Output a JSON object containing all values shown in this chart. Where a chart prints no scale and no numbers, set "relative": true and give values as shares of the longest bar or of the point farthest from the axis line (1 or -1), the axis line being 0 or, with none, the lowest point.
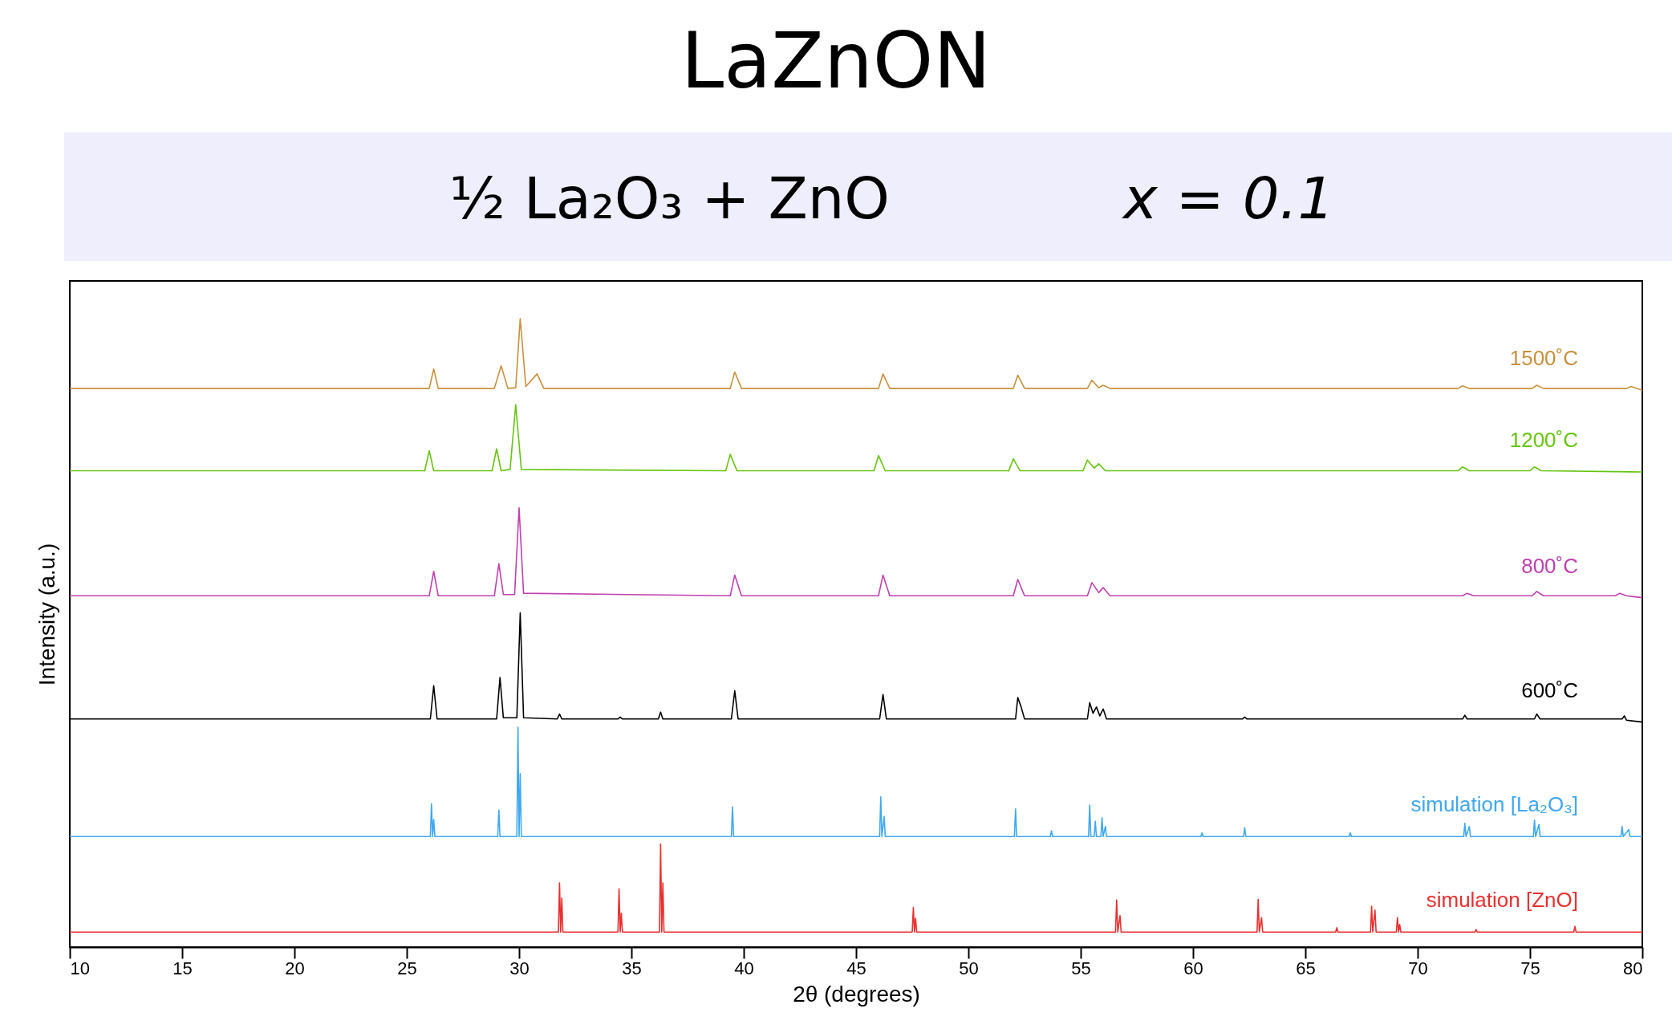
{
  "chart_data": {
    "type": "line",
    "title": "LaZnON",
    "subtitle": "½ La₂O₃ + ZnO",
    "annotations": [
      "x = 0.1"
    ],
    "xlabel": "2θ (degrees)",
    "ylabel": "Intensity (a.u.)",
    "relative": true,
    "xlim": [
      10,
      80
    ],
    "xticks": [
      10,
      15,
      20,
      25,
      30,
      35,
      40,
      45,
      50,
      55,
      60,
      65,
      70,
      75,
      80
    ],
    "grid": false,
    "legend": false,
    "series": [
      {
        "name": "1500˚C",
        "color": "#c8903c",
        "x": [
          10,
          26.0,
          26.2,
          26.4,
          28.9,
          29.2,
          29.5,
          29.85,
          30.05,
          30.3,
          30.8,
          31.1,
          39.4,
          39.6,
          39.9,
          46.0,
          46.2,
          46.5,
          52.0,
          52.2,
          52.5,
          55.3,
          55.5,
          55.8,
          56.0,
          56.3,
          71.8,
          72.0,
          72.3,
          75.1,
          75.3,
          75.6,
          79.3,
          79.5,
          80
        ],
        "values": [
          0.889,
          0.889,
          0.92,
          0.889,
          0.889,
          0.925,
          0.889,
          0.89,
          1.0,
          0.892,
          0.912,
          0.889,
          0.889,
          0.915,
          0.889,
          0.889,
          0.912,
          0.889,
          0.889,
          0.91,
          0.889,
          0.889,
          0.902,
          0.89,
          0.894,
          0.889,
          0.889,
          0.893,
          0.889,
          0.889,
          0.894,
          0.889,
          0.889,
          0.892,
          0.886
        ]
      },
      {
        "name": "1200˚C",
        "color": "#66c410",
        "x": [
          10,
          25.8,
          26.0,
          26.2,
          28.8,
          29.0,
          29.2,
          29.6,
          29.85,
          30.1,
          39.2,
          39.4,
          39.7,
          45.8,
          46.0,
          46.3,
          51.8,
          52.0,
          52.3,
          55.1,
          55.3,
          55.6,
          55.8,
          56.1,
          71.8,
          72.0,
          72.3,
          75.0,
          75.2,
          75.5,
          80
        ],
        "values": [
          0.758,
          0.758,
          0.79,
          0.758,
          0.758,
          0.793,
          0.758,
          0.76,
          0.863,
          0.76,
          0.758,
          0.784,
          0.758,
          0.758,
          0.782,
          0.758,
          0.758,
          0.777,
          0.758,
          0.758,
          0.775,
          0.762,
          0.769,
          0.758,
          0.758,
          0.764,
          0.758,
          0.758,
          0.764,
          0.758,
          0.756
        ]
      },
      {
        "name": "800˚C",
        "color": "#c040b0",
        "x": [
          10,
          26.0,
          26.2,
          26.4,
          28.9,
          29.1,
          29.3,
          29.8,
          30.0,
          30.2,
          39.4,
          39.6,
          39.9,
          46.0,
          46.2,
          46.5,
          52.0,
          52.2,
          52.5,
          55.3,
          55.5,
          55.8,
          56.0,
          56.3,
          72.0,
          72.2,
          72.5,
          75.1,
          75.3,
          75.6,
          78.8,
          79.0,
          79.3,
          80
        ],
        "values": [
          0.559,
          0.559,
          0.598,
          0.559,
          0.559,
          0.61,
          0.561,
          0.561,
          0.699,
          0.563,
          0.559,
          0.592,
          0.559,
          0.559,
          0.592,
          0.559,
          0.559,
          0.585,
          0.559,
          0.559,
          0.58,
          0.564,
          0.572,
          0.559,
          0.559,
          0.563,
          0.559,
          0.559,
          0.566,
          0.559,
          0.559,
          0.563,
          0.559,
          0.556
        ]
      },
      {
        "name": "600˚C",
        "color": "#000000",
        "x": [
          10,
          26.05,
          26.2,
          26.35,
          29.0,
          29.15,
          29.3,
          29.9,
          30.05,
          30.2,
          31.7,
          31.8,
          31.9,
          34.4,
          34.5,
          34.6,
          36.2,
          36.3,
          36.4,
          39.45,
          39.6,
          39.75,
          46.05,
          46.2,
          46.35,
          52.1,
          52.2,
          52.35,
          52.5,
          55.3,
          55.4,
          55.55,
          55.7,
          55.85,
          56.0,
          56.15,
          62.2,
          62.3,
          62.4,
          72.0,
          72.1,
          72.2,
          75.2,
          75.3,
          75.45,
          79.1,
          79.2,
          79.3,
          80
        ],
        "values": [
          0.363,
          0.363,
          0.416,
          0.363,
          0.363,
          0.429,
          0.365,
          0.365,
          0.532,
          0.365,
          0.363,
          0.371,
          0.363,
          0.363,
          0.366,
          0.363,
          0.363,
          0.374,
          0.363,
          0.363,
          0.408,
          0.363,
          0.363,
          0.402,
          0.363,
          0.363,
          0.397,
          0.382,
          0.363,
          0.363,
          0.389,
          0.372,
          0.382,
          0.368,
          0.379,
          0.363,
          0.363,
          0.366,
          0.363,
          0.363,
          0.369,
          0.363,
          0.363,
          0.371,
          0.363,
          0.363,
          0.368,
          0.361,
          0.358
        ]
      },
      {
        "name": "simulation [La₂O₃]",
        "color": "#40a8f0",
        "x": [
          10,
          26.05,
          26.1,
          26.15,
          26.2,
          26.25,
          29.05,
          29.1,
          29.15,
          29.9,
          29.95,
          30.0,
          30.05,
          30.1,
          39.45,
          39.5,
          39.55,
          46.05,
          46.1,
          46.15,
          46.25,
          46.3,
          52.05,
          52.1,
          52.15,
          53.65,
          53.7,
          53.75,
          55.35,
          55.4,
          55.45,
          55.6,
          55.65,
          55.7,
          55.9,
          55.95,
          56.0,
          56.1,
          56.15,
          60.35,
          60.4,
          60.45,
          62.25,
          62.3,
          62.35,
          66.95,
          67.0,
          67.05,
          72.05,
          72.1,
          72.15,
          72.3,
          72.35,
          75.15,
          75.2,
          75.25,
          75.4,
          75.45,
          79.05,
          79.1,
          79.15,
          79.4,
          79.45,
          80
        ],
        "values": [
          0.176,
          0.176,
          0.228,
          0.176,
          0.203,
          0.176,
          0.176,
          0.218,
          0.176,
          0.176,
          0.35,
          0.176,
          0.276,
          0.176,
          0.176,
          0.223,
          0.176,
          0.176,
          0.239,
          0.176,
          0.208,
          0.176,
          0.176,
          0.22,
          0.176,
          0.176,
          0.185,
          0.176,
          0.176,
          0.226,
          0.176,
          0.176,
          0.2,
          0.176,
          0.176,
          0.206,
          0.176,
          0.192,
          0.176,
          0.176,
          0.182,
          0.176,
          0.176,
          0.19,
          0.176,
          0.176,
          0.182,
          0.176,
          0.176,
          0.197,
          0.176,
          0.192,
          0.176,
          0.176,
          0.202,
          0.176,
          0.195,
          0.176,
          0.176,
          0.192,
          0.176,
          0.187,
          0.176,
          0.176
        ]
      },
      {
        "name": "simulation [ZnO]",
        "color": "#e83030",
        "x": [
          10,
          31.75,
          31.8,
          31.85,
          31.9,
          31.95,
          34.4,
          34.45,
          34.5,
          34.55,
          34.6,
          36.25,
          36.3,
          36.35,
          36.4,
          36.45,
          47.5,
          47.55,
          47.6,
          47.65,
          47.7,
          56.55,
          56.6,
          56.65,
          56.75,
          56.8,
          62.85,
          62.9,
          62.95,
          63.05,
          63.1,
          66.35,
          66.4,
          66.45,
          67.9,
          67.95,
          68.0,
          68.1,
          68.15,
          69.05,
          69.1,
          69.15,
          69.2,
          69.25,
          72.55,
          72.6,
          72.65,
          76.95,
          77.0,
          77.05,
          80
        ],
        "values": [
          0.024,
          0.024,
          0.102,
          0.024,
          0.078,
          0.024,
          0.024,
          0.093,
          0.024,
          0.054,
          0.024,
          0.024,
          0.164,
          0.024,
          0.102,
          0.024,
          0.024,
          0.063,
          0.024,
          0.046,
          0.024,
          0.024,
          0.075,
          0.024,
          0.05,
          0.024,
          0.024,
          0.076,
          0.024,
          0.047,
          0.024,
          0.024,
          0.031,
          0.024,
          0.024,
          0.065,
          0.024,
          0.059,
          0.024,
          0.024,
          0.047,
          0.024,
          0.036,
          0.024,
          0.024,
          0.028,
          0.024,
          0.024,
          0.033,
          0.024,
          0.024
        ]
      }
    ]
  }
}
